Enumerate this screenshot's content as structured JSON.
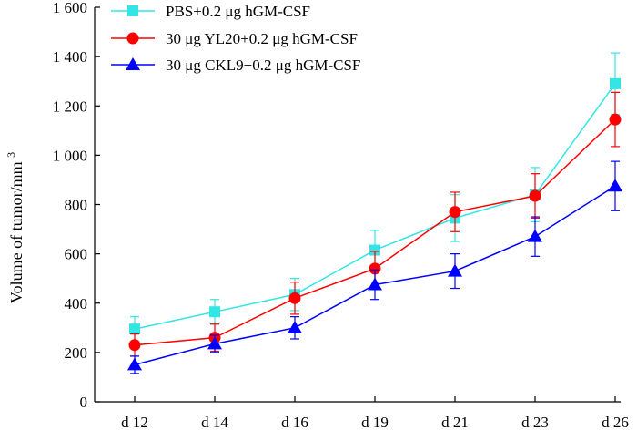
{
  "chart_data": {
    "type": "line",
    "title": "",
    "xlabel": "",
    "ylabel": "Volume of tumor/mm",
    "ylabel_superscript": "3",
    "categories": [
      "d 12",
      "d 14",
      "d 16",
      "d 19",
      "d 21",
      "d 23",
      "d 26"
    ],
    "ylim": [
      0,
      1600
    ],
    "yticks": [
      0,
      200,
      400,
      600,
      800,
      1000,
      1200,
      1400,
      1600
    ],
    "ytick_labels": [
      "0",
      "200",
      "400",
      "600",
      "800",
      "1 000",
      "1 200",
      "1 400",
      "1 600"
    ],
    "legend_position": "top-left",
    "series": [
      {
        "name": "PBS+0.2 μg hGM-CSF",
        "color": "#33e5e5",
        "marker": "square",
        "values": [
          295,
          365,
          435,
          615,
          745,
          840,
          1290
        ],
        "errors": [
          50,
          50,
          65,
          80,
          95,
          110,
          125
        ]
      },
      {
        "name": "30 μg YL20+0.2 μg hGM-CSF",
        "color": "#ff0000",
        "marker": "circle",
        "values": [
          230,
          260,
          420,
          540,
          770,
          835,
          1145
        ],
        "errors": [
          45,
          55,
          65,
          70,
          80,
          90,
          110
        ]
      },
      {
        "name": "30 μg CKL9+0.2 μg hGM-CSF",
        "color": "#0000ff",
        "marker": "triangle",
        "values": [
          150,
          235,
          300,
          475,
          530,
          670,
          875
        ],
        "errors": [
          35,
          35,
          45,
          60,
          70,
          80,
          100
        ]
      }
    ]
  }
}
